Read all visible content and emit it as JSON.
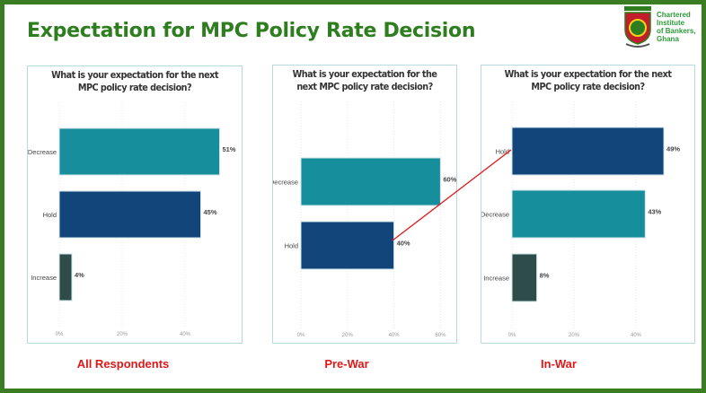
{
  "title": "Expectation for MPC Policy Rate Decision",
  "logo": {
    "badge": "CIB GHANA",
    "name_lines": [
      "Chartered",
      "Institute",
      "of Bankers,",
      "Ghana"
    ]
  },
  "colors": {
    "decrease": "#178e9c",
    "hold": "#12457a",
    "increase": "#2e4d4a",
    "connector": "#e01818",
    "caption": "#e01818",
    "title": "#2e7d1f"
  },
  "chart_data": [
    {
      "type": "bar",
      "orientation": "horizontal",
      "title": "What is your expectation for the next MPC policy rate decision?",
      "caption": "All Respondents",
      "categories": [
        "Decrease",
        "Hold",
        "Increase"
      ],
      "values": [
        51,
        45,
        4
      ],
      "labels": [
        "51%",
        "45%",
        "4%"
      ],
      "xticks": [
        0,
        20,
        40
      ],
      "xtick_labels": [
        "0%",
        "20%",
        "40%"
      ],
      "xlim": [
        0,
        55
      ],
      "grid": true
    },
    {
      "type": "bar",
      "orientation": "horizontal",
      "title": "What is your expectation for the next MPC policy rate decision?",
      "caption": "Pre-War",
      "categories": [
        "Decrease",
        "Hold"
      ],
      "values": [
        60,
        40
      ],
      "labels": [
        "60%",
        "40%"
      ],
      "xticks": [
        0,
        20,
        40,
        60
      ],
      "xtick_labels": [
        "0%",
        "20%",
        "40%",
        "60%"
      ],
      "xlim": [
        0,
        60
      ],
      "grid": true
    },
    {
      "type": "bar",
      "orientation": "horizontal",
      "title": "What is your expectation for the next MPC policy rate decision?",
      "caption": "In-War",
      "categories": [
        "Hold",
        "Decrease",
        "Increase"
      ],
      "values": [
        49,
        43,
        8
      ],
      "labels": [
        "49%",
        "43%",
        "8%"
      ],
      "xticks": [
        0,
        20,
        40
      ],
      "xtick_labels": [
        "0%",
        "20%",
        "40%"
      ],
      "xlim": [
        0,
        55
      ],
      "grid": true
    }
  ]
}
